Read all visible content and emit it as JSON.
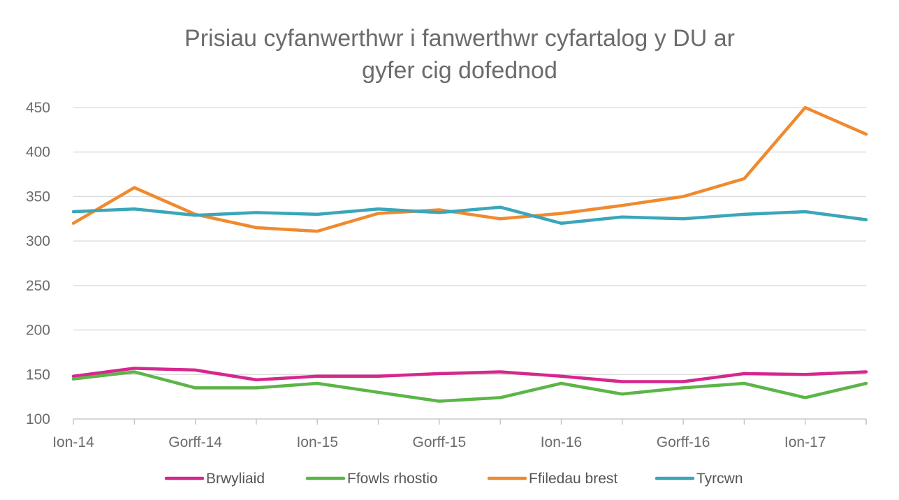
{
  "chart_data": {
    "type": "line",
    "title_lines": [
      "Prisiau cyfanwerthwr i fanwerthwr cyfartalog y DU ar",
      "gyfer cig dofednod"
    ],
    "x": [
      "Ion-14",
      "",
      "Gorff-14",
      "",
      "Ion-15",
      "",
      "Gorff-15",
      "",
      "Ion-16",
      "",
      "Gorff-16",
      "",
      "Ion-17",
      ""
    ],
    "ylim": [
      100,
      450
    ],
    "yticks": [
      100,
      150,
      200,
      250,
      300,
      350,
      400,
      450
    ],
    "grid": true,
    "legend_position": "bottom",
    "series": [
      {
        "name": "Brwyliaid",
        "color": "#d6278d",
        "values": [
          148,
          157,
          155,
          144,
          148,
          148,
          151,
          153,
          148,
          142,
          142,
          151,
          150,
          153
        ]
      },
      {
        "name": "Ffowls rhostio",
        "color": "#5cb547",
        "values": [
          145,
          153,
          135,
          135,
          140,
          130,
          120,
          124,
          140,
          128,
          135,
          140,
          124,
          140
        ]
      },
      {
        "name": "Ffiledau brest",
        "color": "#f08a2e",
        "values": [
          320,
          360,
          330,
          315,
          311,
          331,
          335,
          325,
          331,
          340,
          350,
          370,
          450,
          420
        ]
      },
      {
        "name": "Tyrcwn",
        "color": "#3aa6b9",
        "values": [
          333,
          336,
          329,
          332,
          330,
          336,
          332,
          338,
          320,
          327,
          325,
          330,
          333,
          324
        ]
      }
    ]
  }
}
